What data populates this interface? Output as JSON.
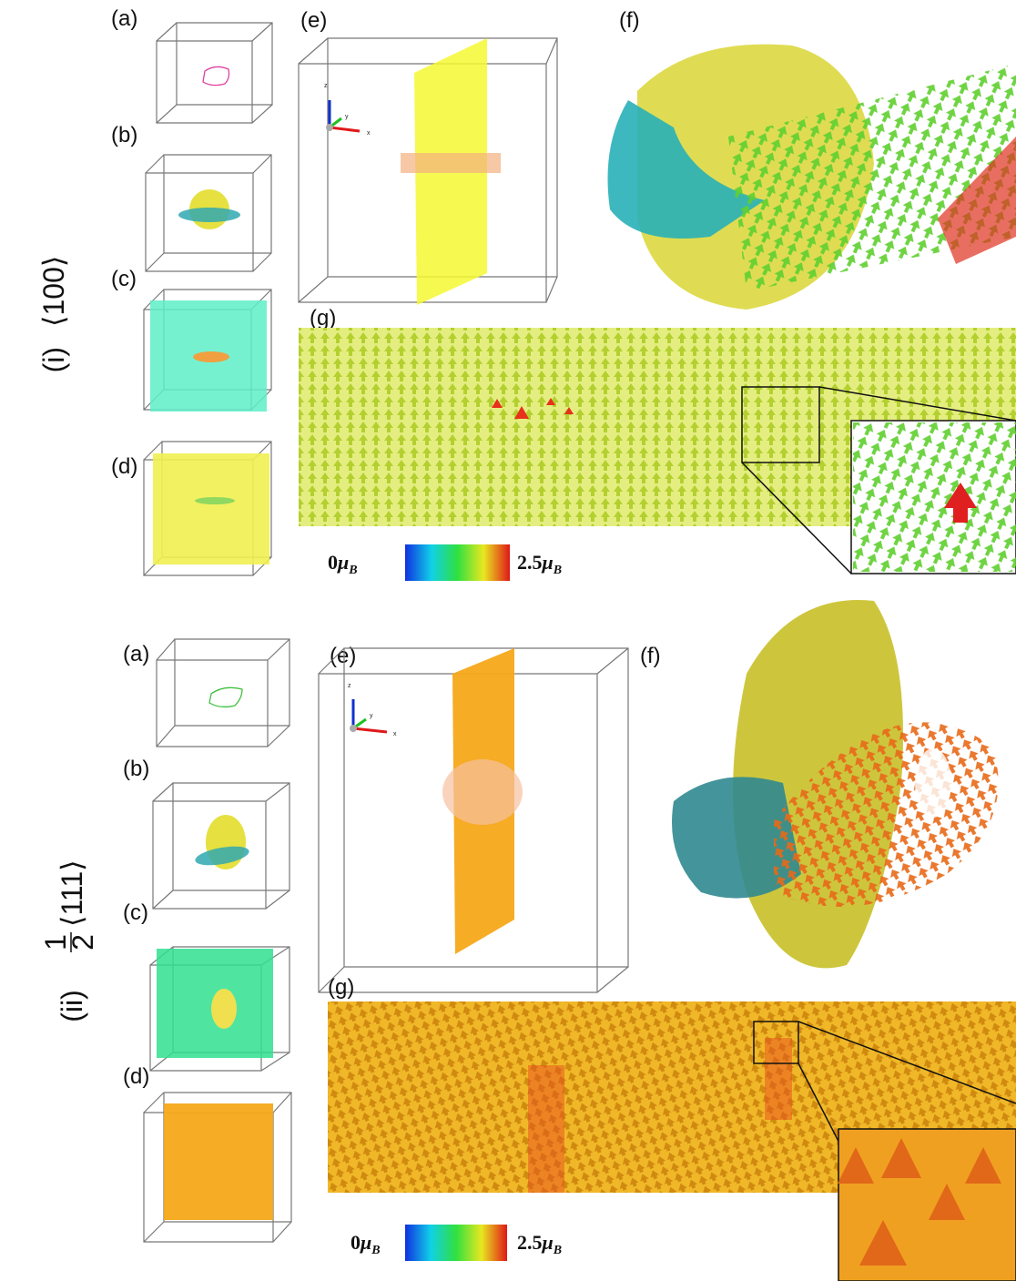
{
  "sections": [
    {
      "label": "(i)",
      "direction": "⟨100⟩",
      "panels": [
        "(a)",
        "(b)",
        "(c)",
        "(d)",
        "(e)",
        "(f)",
        "(g)"
      ],
      "axes": [
        "z",
        "y",
        "x"
      ],
      "colorbar": {
        "min": "0",
        "max": "2.5",
        "unit": "μ",
        "unit_sub": "B"
      }
    },
    {
      "label": "(ii)",
      "fraction_numerator": "1",
      "fraction_denominator": "2",
      "direction": "⟨111⟩",
      "panels": [
        "(a)",
        "(b)",
        "(c)",
        "(d)",
        "(e)",
        "(f)",
        "(g)"
      ],
      "axes": [
        "z",
        "y",
        "x"
      ],
      "colorbar": {
        "min": "0",
        "max": "2.5",
        "unit": "μ",
        "unit_sub": "B"
      }
    }
  ]
}
